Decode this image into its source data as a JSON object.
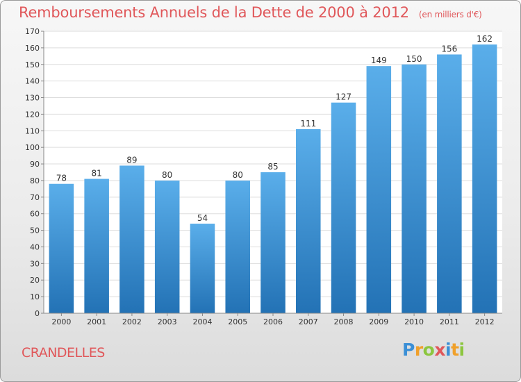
{
  "title": "Remboursements Annuels de la Dette de 2000 à 2012",
  "unit": "(en milliers d'€)",
  "town": "CRANDELLES",
  "logo": {
    "text": "Proxiti"
  },
  "colors": {
    "bar_top": "#5aaeea",
    "bar_bottom": "#2372b5",
    "title": "#e0575a"
  },
  "chart_data": {
    "type": "bar",
    "title": "Remboursements Annuels de la Dette de 2000 à 2012",
    "xlabel": "",
    "ylabel": "(en milliers d'€)",
    "ylim": [
      0,
      170
    ],
    "yticks": [
      0,
      10,
      20,
      30,
      40,
      50,
      60,
      70,
      80,
      90,
      100,
      110,
      120,
      130,
      140,
      150,
      160,
      170
    ],
    "grid": true,
    "categories": [
      "2000",
      "2001",
      "2002",
      "2003",
      "2004",
      "2005",
      "2006",
      "2007",
      "2008",
      "2009",
      "2010",
      "2011",
      "2012"
    ],
    "values": [
      78,
      81,
      89,
      80,
      54,
      80,
      85,
      111,
      127,
      149,
      150,
      156,
      162
    ]
  }
}
